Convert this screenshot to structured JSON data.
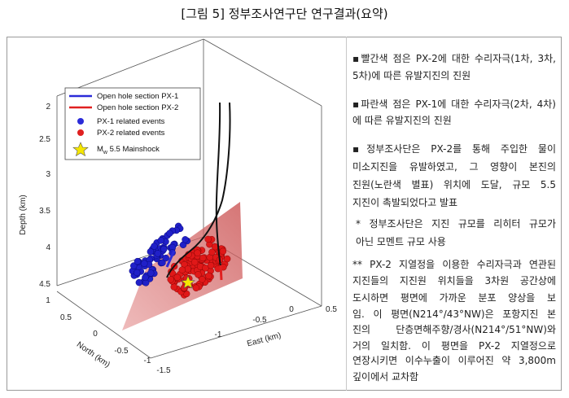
{
  "header": {
    "title": "[그림 5] 정부조사연구단 연구결과(요약)"
  },
  "figure": {
    "legend": [
      {
        "label": "Open hole section PX-1"
      },
      {
        "label": "Open hole section PX-2"
      },
      {
        "label": "PX-1 related events"
      },
      {
        "label": "PX-2 related events"
      },
      {
        "label": "M",
        "subscript": "w",
        "suffix": " 5.5 Mainshock"
      }
    ],
    "depth_axis": {
      "label": "Depth (km)",
      "ticks": [
        "2",
        "2.5",
        "3",
        "3.5",
        "4",
        "4.5"
      ]
    },
    "north_axis": {
      "label": "North (km)",
      "ticks": [
        "1",
        "0.5",
        "0",
        "-0.5",
        "-1",
        "-1.5"
      ]
    },
    "east_axis": {
      "label": "East (km)",
      "ticks": [
        "-1",
        "-0.5",
        "0",
        "0.5"
      ]
    }
  },
  "notes": {
    "bullets": [
      {
        "lines": [
          "▪빨간색 점은 PX-2에 대한 수리자극(1차, 3차,",
          "5차)에 따른 유발지진의 진원"
        ]
      },
      {
        "lines": [
          "▪파란색 점은 PX-1에 대한 수리자극(2차, 4차)",
          "에 따른 유발지진의 진원"
        ]
      },
      {
        "lines": [
          "▪정부조사단은 PX-2를 통해 주입한 물이",
          "미소지진을 유발하였고, 그 영향이 본진의",
          "진원(노란색 별표) 위치에 도달, 규모 5.5",
          "지진이 촉발되었다고 발표"
        ]
      }
    ],
    "footnotes": [
      {
        "lines": [
          "* 정부조사단은 지진 규모를 리히터 규모가",
          "아닌 모멘트 규모 사용"
        ]
      },
      {
        "lines": [
          "** PX-2 지열정을 이용한 수리자극과 연관된",
          "지진들의 지진원 위치들을 3차원 공간상에",
          "도시하면 평면에 가까운 분포 양상을 보",
          "임. 이 평면(N214°/43°NW)은 포항지진 본",
          "진의 단층면해주향/경사(N214°/51°NW)와",
          "거의 일치함. 이 평면을 PX-2 지열정으로",
          "연장시키면 이수누출이 이루어진 약 3,800m",
          "깊이에서 교차함"
        ]
      }
    ]
  }
}
